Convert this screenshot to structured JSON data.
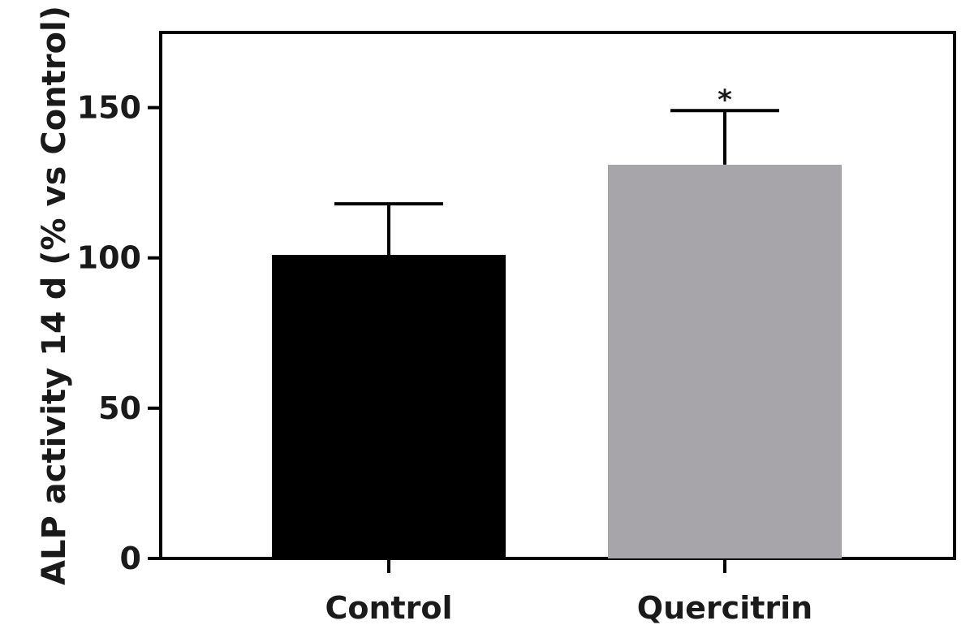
{
  "chart_data": {
    "type": "bar",
    "categories": [
      "Control",
      "Quercitrin"
    ],
    "values": [
      101,
      131
    ],
    "error_upper": [
      118,
      149
    ],
    "annotations": [
      "",
      "*"
    ],
    "title": "",
    "xlabel": "",
    "ylabel": "ALP activity 14 d (% vs Control)",
    "ylim": [
      0,
      175
    ],
    "yticks": [
      0,
      50,
      100,
      150
    ],
    "grid": false,
    "colors": [
      "#000000",
      "#a7a5aa"
    ]
  }
}
